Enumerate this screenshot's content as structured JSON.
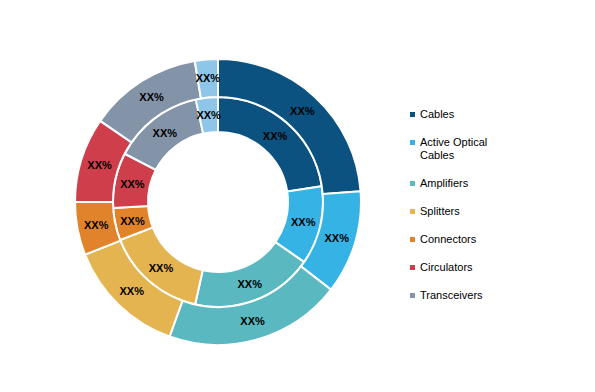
{
  "chart_data": {
    "type": "donut",
    "categories": [
      "Cables",
      "Active Optical Cables",
      "Amplifiers",
      "Splitters",
      "Connectors",
      "Circulators",
      "Transceivers",
      null
    ],
    "colors": [
      "#0b5280",
      "#35b3e5",
      "#5ab8c0",
      "#e3b44f",
      "#e0832a",
      "#cf3f4b",
      "#8494a8",
      "#8ec6ea"
    ],
    "series": [
      {
        "values": [
          22.6,
          12.1,
          18.8,
          15.6,
          5,
          8.5,
          14,
          3.4
        ],
        "value_labels": [
          "XX%",
          "XX%",
          "XX%",
          "XX%",
          "XX%",
          "XX%",
          "XX%",
          "XX%"
        ]
      },
      {
        "values": [
          23.8,
          11.7,
          20,
          13.5,
          6,
          9.6,
          12.8,
          2.6
        ],
        "value_labels": [
          "XX%",
          "XX%",
          "XX%",
          "XX%",
          "XX%",
          "XX%",
          "XX%",
          "XX%"
        ]
      }
    ],
    "data_labels": true,
    "legend": "right"
  }
}
